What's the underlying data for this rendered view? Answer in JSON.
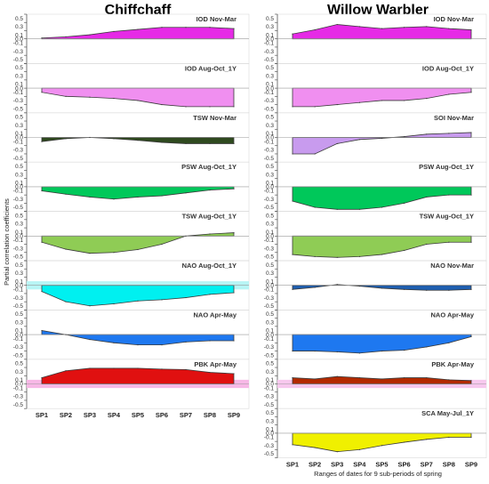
{
  "ylabel": "Partial correlation coefficients",
  "xlabel": "Ranges of dates for 9 sub-periods of spring",
  "columns": [
    {
      "title": "Chiffchaff"
    },
    {
      "title": "Willow Warbler"
    }
  ],
  "chart_data": [
    {
      "type": "area",
      "title": "Chiffchaff",
      "ylim": [
        -0.6,
        0.6
      ],
      "ticks": [
        "0.6",
        "0.5",
        "0.4",
        "0.3",
        "0.2",
        "0.1",
        "0.0",
        "-0.1",
        "-0.2",
        "-0.3",
        "-0.4",
        "-0.5",
        "-0.6"
      ],
      "x": [
        "SP1",
        "SP2",
        "SP3",
        "SP4",
        "SP5",
        "SP6",
        "SP7",
        "SP8",
        "SP9"
      ],
      "panels": [
        {
          "name": "IOD Nov-Mar",
          "color": "#e62ae6",
          "band": null,
          "values": [
            0.02,
            0.05,
            0.1,
            0.18,
            0.23,
            0.28,
            0.28,
            0.28,
            0.25
          ]
        },
        {
          "name": "IOD Aug-Oct_1Y",
          "color": "#f08ff0",
          "band": null,
          "values": [
            -0.1,
            -0.2,
            -0.22,
            -0.25,
            -0.3,
            -0.4,
            -0.45,
            -0.45,
            -0.45
          ]
        },
        {
          "name": "TSW Nov-Mar",
          "color": "#2f4a1f",
          "band": null,
          "values": [
            -0.1,
            -0.03,
            0.0,
            -0.03,
            -0.07,
            -0.12,
            -0.15,
            -0.15,
            -0.15
          ]
        },
        {
          "name": "PSW Aug-Oct_1Y",
          "color": "#00c85a",
          "band": null,
          "values": [
            -0.1,
            -0.18,
            -0.25,
            -0.3,
            -0.25,
            -0.22,
            -0.15,
            -0.08,
            -0.05
          ]
        },
        {
          "name": "TSW Aug-Oct_1Y",
          "color": "#8fcc55",
          "band": null,
          "values": [
            -0.15,
            -0.32,
            -0.42,
            -0.4,
            -0.33,
            -0.2,
            0.0,
            0.05,
            0.08
          ]
        },
        {
          "name": "NAO Aug-Oct_1Y",
          "color": "#00f0f0",
          "band": "#b8f5f5",
          "values": [
            -0.15,
            -0.4,
            -0.5,
            -0.45,
            -0.38,
            -0.35,
            -0.3,
            -0.22,
            -0.18
          ]
        },
        {
          "name": "NAO Apr-May",
          "color": "#1e78f0",
          "band": null,
          "values": [
            0.1,
            0.0,
            -0.12,
            -0.2,
            -0.25,
            -0.25,
            -0.18,
            -0.15,
            -0.15
          ]
        },
        {
          "name": "PBK Apr-May",
          "color": "#e01010",
          "band": "#f7b8e6",
          "values": [
            0.15,
            0.32,
            0.38,
            0.38,
            0.38,
            0.36,
            0.35,
            0.28,
            0.25
          ]
        }
      ]
    },
    {
      "type": "area",
      "title": "Willow Warbler",
      "ylim": [
        -0.6,
        0.6
      ],
      "ticks": [
        "0.6",
        "0.5",
        "0.4",
        "0.3",
        "0.2",
        "0.1",
        "0.0",
        "-0.1",
        "-0.2",
        "-0.3",
        "-0.4",
        "-0.5",
        "-0.6"
      ],
      "x": [
        "SP1",
        "SP2",
        "SP3",
        "SP4",
        "SP5",
        "SP6",
        "SP7",
        "SP8",
        "SP9"
      ],
      "panels": [
        {
          "name": "IOD Nov-Mar",
          "color": "#e62ae6",
          "band": null,
          "values": [
            0.12,
            0.22,
            0.35,
            0.3,
            0.25,
            0.28,
            0.3,
            0.25,
            0.22
          ]
        },
        {
          "name": "IOD Aug-Oct_1Y",
          "color": "#f08ff0",
          "band": null,
          "values": [
            -0.45,
            -0.45,
            -0.4,
            -0.35,
            -0.3,
            -0.3,
            -0.25,
            -0.15,
            -0.1
          ]
        },
        {
          "name": "SOI Nov-Mar",
          "color": "#c89bee",
          "band": null,
          "values": [
            -0.4,
            -0.4,
            -0.15,
            -0.05,
            -0.02,
            0.02,
            0.08,
            0.1,
            0.12
          ]
        },
        {
          "name": "PSW Aug-Oct_1Y",
          "color": "#00c85a",
          "band": null,
          "values": [
            -0.35,
            -0.5,
            -0.55,
            -0.55,
            -0.5,
            -0.4,
            -0.25,
            -0.2,
            -0.2
          ]
        },
        {
          "name": "TSW Aug-Oct_1Y",
          "color": "#8fcc55",
          "band": null,
          "values": [
            -0.45,
            -0.5,
            -0.52,
            -0.5,
            -0.45,
            -0.35,
            -0.2,
            -0.15,
            -0.15
          ]
        },
        {
          "name": "NAO Nov-Mar",
          "color": "#1f5fb0",
          "band": null,
          "values": [
            -0.1,
            -0.05,
            0.02,
            -0.02,
            -0.07,
            -0.1,
            -0.12,
            -0.12,
            -0.1
          ]
        },
        {
          "name": "NAO Apr-May",
          "color": "#1e78f0",
          "band": null,
          "values": [
            -0.4,
            -0.4,
            -0.42,
            -0.45,
            -0.4,
            -0.38,
            -0.3,
            -0.2,
            -0.05
          ]
        },
        {
          "name": "PBK Apr-May",
          "color": "#b32a00",
          "band": "#f7c8ee",
          "values": [
            0.15,
            0.12,
            0.18,
            0.15,
            0.12,
            0.15,
            0.15,
            0.1,
            0.08
          ]
        },
        {
          "name": "SCA May-Jul_1Y",
          "color": "#f0f000",
          "band": null,
          "values": [
            -0.28,
            -0.35,
            -0.45,
            -0.4,
            -0.3,
            -0.22,
            -0.15,
            -0.1,
            -0.1
          ]
        }
      ]
    }
  ]
}
